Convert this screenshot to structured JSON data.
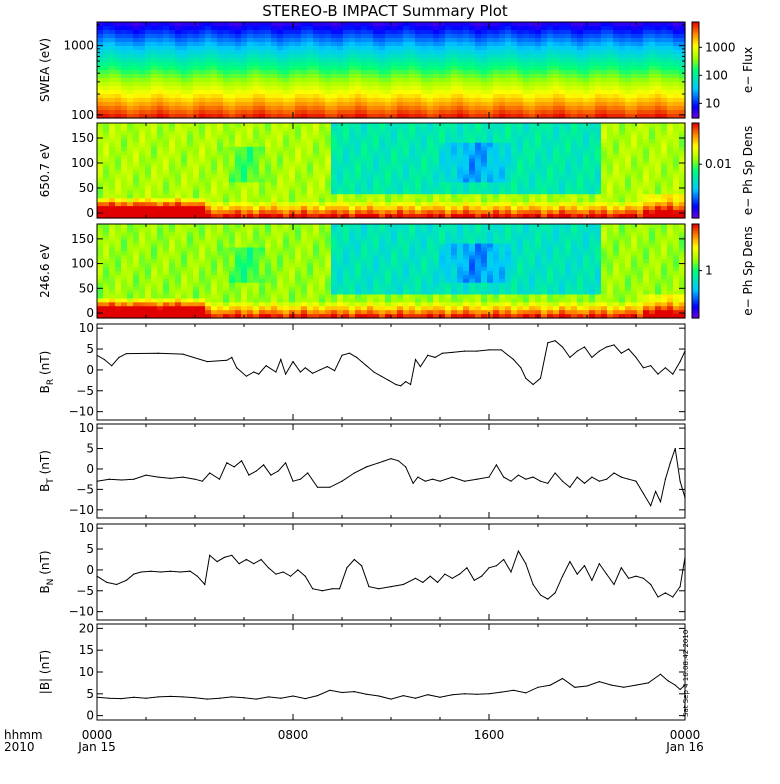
{
  "title": "STEREO-B IMPACT Summary Plot",
  "timestamp": "Sat Sep  4 16:08:42 2010",
  "chart_data": [
    {
      "type": "heatmap",
      "ylabel": "SWEA (eV)",
      "yscale": "log",
      "ylim": [
        90,
        2200
      ],
      "yticks": [
        100,
        1000
      ],
      "ytick_labels": [
        "100",
        "1000"
      ],
      "colorbar": {
        "label": "e− Flux",
        "scale": "log",
        "range": [
          3,
          8000
        ],
        "ticks": [
          10,
          100,
          1000
        ],
        "tick_labels": [
          "10",
          "100",
          "1000"
        ]
      }
    },
    {
      "type": "heatmap",
      "ylabel": "650.7 eV",
      "ylim": [
        -10,
        180
      ],
      "yticks": [
        0,
        50,
        100,
        150
      ],
      "ytick_labels": [
        "0",
        "50",
        "100",
        "150"
      ],
      "colorbar": {
        "label": "e− Ph Sp Dens",
        "scale": "log",
        "range": [
          0.0002,
          0.2
        ],
        "ticks": [
          0.01
        ],
        "tick_labels": [
          "0.01"
        ]
      }
    },
    {
      "type": "heatmap",
      "ylabel": "246.6 eV",
      "ylim": [
        -10,
        180
      ],
      "yticks": [
        0,
        50,
        100,
        150
      ],
      "ytick_labels": [
        "0",
        "50",
        "100",
        "150"
      ],
      "colorbar": {
        "label": "e− Ph Sp Dens",
        "scale": "log",
        "range": [
          0.08,
          12
        ],
        "ticks": [
          1
        ],
        "tick_labels": [
          "1"
        ]
      }
    },
    {
      "type": "line",
      "ylabel_main": "B",
      "ylabel_sub": "R",
      "ylabel_unit": "(nT)",
      "ylim": [
        -12,
        11
      ],
      "yticks": [
        -10,
        -5,
        0,
        5,
        10
      ],
      "ytick_labels": [
        "−10",
        "−5",
        "0",
        "5",
        "10"
      ],
      "x": [
        0,
        0.3,
        0.6,
        0.9,
        1.2,
        2.5,
        3.5,
        4.5,
        5.3,
        5.5,
        5.7,
        6.1,
        6.4,
        6.6,
        6.9,
        7.3,
        7.5,
        7.7,
        8.0,
        8.3,
        8.5,
        8.8,
        9.1,
        9.4,
        9.7,
        10.0,
        10.3,
        10.6,
        10.8,
        11.0,
        11.3,
        11.6,
        11.9,
        12.2,
        12.4,
        12.6,
        12.8,
        13.0,
        13.2,
        13.5,
        13.8,
        14.1,
        14.5,
        15.0,
        15.5,
        16.0,
        16.5,
        17.0,
        17.3,
        17.5,
        17.8,
        18.1,
        18.4,
        18.7,
        19.0,
        19.3,
        19.6,
        19.9,
        20.2,
        20.5,
        20.8,
        21.1,
        21.4,
        21.7,
        22.0,
        22.3,
        22.6,
        22.9,
        23.2,
        23.5,
        23.8,
        24.0
      ],
      "values": [
        3.5,
        2.5,
        1.0,
        3.0,
        3.9,
        4.0,
        3.8,
        2.0,
        2.3,
        3.0,
        0.5,
        -1.5,
        -0.5,
        -1.0,
        1.0,
        -0.5,
        2.5,
        -1.0,
        2.0,
        -0.5,
        0.5,
        -0.8,
        0.0,
        0.8,
        -0.2,
        3.5,
        4.0,
        3.0,
        2.0,
        1.0,
        -0.5,
        -1.5,
        -2.5,
        -3.5,
        -3.8,
        -2.8,
        -3.5,
        2.5,
        0.8,
        3.5,
        3.0,
        4.0,
        4.2,
        4.5,
        4.5,
        4.8,
        4.8,
        2.5,
        0.5,
        -2.0,
        -3.5,
        -2.0,
        6.5,
        7.0,
        5.5,
        3.0,
        4.5,
        5.5,
        3.0,
        4.5,
        5.5,
        6.0,
        4.0,
        5.0,
        3.0,
        0.5,
        1.0,
        -1.0,
        0.5,
        -1.0,
        2.0,
        4.5
      ]
    },
    {
      "type": "line",
      "ylabel_main": "B",
      "ylabel_sub": "T",
      "ylabel_unit": "(nT)",
      "ylim": [
        -12,
        11
      ],
      "yticks": [
        -10,
        -5,
        0,
        5,
        10
      ],
      "ytick_labels": [
        "−10",
        "−5",
        "0",
        "5",
        "10"
      ],
      "x": [
        0,
        0.5,
        1.0,
        1.5,
        2.0,
        2.5,
        3.0,
        3.5,
        4.0,
        4.3,
        4.6,
        5.0,
        5.3,
        5.6,
        5.9,
        6.2,
        6.5,
        6.8,
        7.1,
        7.4,
        7.7,
        8.0,
        8.3,
        8.6,
        9.0,
        9.5,
        10.0,
        10.5,
        11.0,
        11.5,
        12.0,
        12.3,
        12.6,
        12.9,
        13.1,
        13.4,
        13.7,
        14.0,
        14.5,
        15.0,
        15.5,
        16.0,
        16.3,
        16.6,
        16.9,
        17.2,
        17.5,
        17.8,
        18.1,
        18.4,
        18.7,
        19.0,
        19.3,
        19.6,
        19.9,
        20.2,
        20.5,
        20.8,
        21.1,
        21.4,
        21.7,
        22.0,
        22.3,
        22.6,
        22.8,
        23.0,
        23.2,
        23.4,
        23.6,
        23.8,
        24.0
      ],
      "values": [
        -3,
        -2.5,
        -2.7,
        -2.5,
        -1.5,
        -2.0,
        -2.3,
        -2.0,
        -2.5,
        -3.0,
        -1.0,
        -2.5,
        1.5,
        0.5,
        2.0,
        -1.5,
        -0.5,
        1.0,
        -1.5,
        -0.5,
        1.5,
        -3.0,
        -2.5,
        -1.0,
        -4.5,
        -4.5,
        -3.0,
        -1.0,
        0.5,
        1.5,
        2.5,
        2.0,
        0.5,
        -3.5,
        -2.0,
        -3.0,
        -2.5,
        -3.0,
        -2.0,
        -3.0,
        -2.5,
        -2.0,
        1.0,
        -2.0,
        -3.0,
        -1.5,
        -2.5,
        -2.0,
        -3.0,
        -3.5,
        -1.0,
        -3.0,
        -4.5,
        -2.0,
        -3.5,
        -2.0,
        -3.0,
        -2.5,
        -1.0,
        -2.0,
        -2.5,
        -3.0,
        -6.0,
        -9.0,
        -5.5,
        -8.0,
        -2.5,
        1.5,
        5.0,
        -3.0,
        -7.0
      ]
    },
    {
      "type": "line",
      "ylabel_main": "B",
      "ylabel_sub": "N",
      "ylabel_unit": "(nT)",
      "ylim": [
        -12,
        11
      ],
      "yticks": [
        -10,
        -5,
        0,
        5,
        10
      ],
      "ytick_labels": [
        "−10",
        "−5",
        "0",
        "5",
        "10"
      ],
      "x": [
        0,
        0.4,
        0.8,
        1.2,
        1.5,
        1.8,
        2.2,
        2.6,
        3.0,
        3.4,
        3.8,
        4.1,
        4.4,
        4.6,
        4.9,
        5.2,
        5.5,
        5.8,
        6.1,
        6.4,
        6.7,
        7.0,
        7.3,
        7.6,
        7.9,
        8.2,
        8.5,
        8.8,
        9.2,
        9.6,
        9.9,
        10.2,
        10.5,
        10.8,
        11.1,
        11.5,
        12.0,
        12.5,
        13.0,
        13.3,
        13.6,
        13.9,
        14.2,
        14.5,
        14.8,
        15.1,
        15.4,
        15.7,
        16.0,
        16.3,
        16.6,
        16.9,
        17.2,
        17.5,
        17.8,
        18.1,
        18.4,
        18.7,
        19.0,
        19.3,
        19.6,
        19.9,
        20.2,
        20.5,
        20.8,
        21.1,
        21.4,
        21.7,
        22.0,
        22.3,
        22.6,
        22.9,
        23.2,
        23.5,
        23.8,
        24.0
      ],
      "values": [
        -1.5,
        -3,
        -3.5,
        -2.5,
        -1.0,
        -0.5,
        -0.3,
        -0.5,
        -0.3,
        -0.5,
        -0.3,
        -1.5,
        -3.5,
        3.5,
        2.0,
        3.0,
        3.5,
        1.5,
        2.5,
        1.5,
        2.5,
        0.5,
        -1.0,
        -0.5,
        -1.5,
        0.0,
        -1.5,
        -4.5,
        -5.0,
        -4.5,
        -4.5,
        0.5,
        2.5,
        1.0,
        -4.0,
        -4.5,
        -4.0,
        -3.5,
        -2.0,
        -3.0,
        -1.5,
        -3.0,
        -1.0,
        -2.0,
        -1.0,
        0.5,
        -2.5,
        -1.5,
        0.5,
        1.0,
        2.5,
        -0.5,
        4.5,
        1.5,
        -3.5,
        -6.0,
        -7.0,
        -5.5,
        -1.5,
        2.0,
        -1.0,
        1.0,
        -2.5,
        1.5,
        -1.0,
        -3.5,
        0.5,
        -2.0,
        -1.5,
        -2.0,
        -3.5,
        -6.5,
        -5.5,
        -6.5,
        -4.0,
        3.0
      ]
    },
    {
      "type": "line",
      "ylabel_main": "|B| (nT)",
      "ylim": [
        -1,
        21
      ],
      "yticks": [
        0,
        5,
        10,
        15,
        20
      ],
      "ytick_labels": [
        "0",
        "5",
        "10",
        "15",
        "20"
      ],
      "x": [
        0,
        0.5,
        1.0,
        1.5,
        2.0,
        2.5,
        3.0,
        3.5,
        4.0,
        4.5,
        5.0,
        5.5,
        6.0,
        6.5,
        7.0,
        7.5,
        8.0,
        8.5,
        9.0,
        9.5,
        10.0,
        10.5,
        11.0,
        11.5,
        12.0,
        12.5,
        13.0,
        13.5,
        14.0,
        14.5,
        15.0,
        15.5,
        16.0,
        16.5,
        17.0,
        17.5,
        18.0,
        18.5,
        19.0,
        19.5,
        20.0,
        20.5,
        21.0,
        21.5,
        22.0,
        22.5,
        23.0,
        23.3,
        23.6,
        23.8,
        24.0
      ],
      "values": [
        4.2,
        4.0,
        3.9,
        4.2,
        4.0,
        4.3,
        4.4,
        4.3,
        4.1,
        3.8,
        4.0,
        4.3,
        4.1,
        3.8,
        4.3,
        4.0,
        4.5,
        3.9,
        4.6,
        5.8,
        5.3,
        5.5,
        4.9,
        4.5,
        3.8,
        4.6,
        4.0,
        4.8,
        4.2,
        4.8,
        5.0,
        4.9,
        5.0,
        5.4,
        5.8,
        5.2,
        6.5,
        7.0,
        8.5,
        6.5,
        6.8,
        7.8,
        7.0,
        6.5,
        7.0,
        7.5,
        9.5,
        8.0,
        7.0,
        6.0,
        7.0
      ]
    }
  ],
  "xaxis": {
    "corner_top": "hhmm",
    "corner_bottom": "2010",
    "ticks": [
      {
        "hour": 0,
        "time": "0000",
        "date": "Jan 15"
      },
      {
        "hour": 8,
        "time": "0800",
        "date": ""
      },
      {
        "hour": 16,
        "time": "1600",
        "date": ""
      },
      {
        "hour": 24,
        "time": "0000",
        "date": "Jan 16"
      }
    ],
    "range_hours": [
      0,
      24
    ],
    "minor_every_hours": 2
  }
}
